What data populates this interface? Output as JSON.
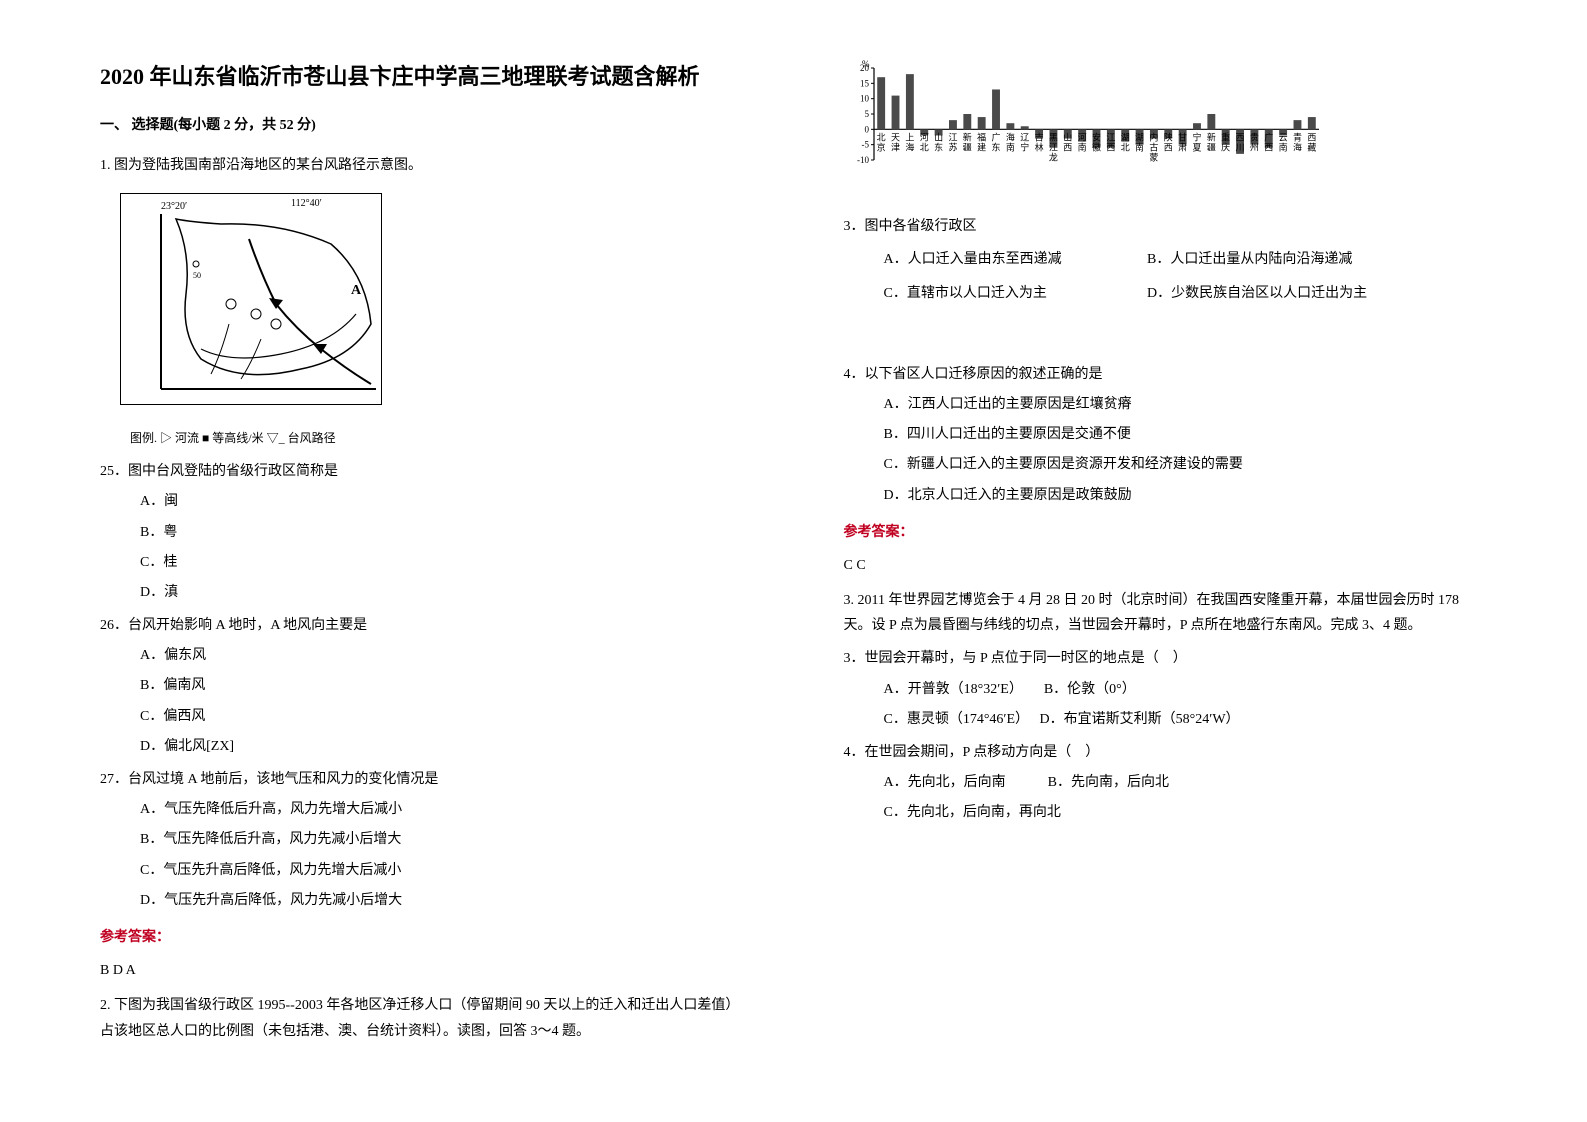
{
  "title": "2020 年山东省临沂市苍山县卞庄中学高三地理联考试题含解析",
  "section1": "一、 选择题(每小题 2 分，共 52 分)",
  "q1": {
    "stem": "1. 图为登陆我国南部沿海地区的某台风路径示意图。",
    "fig_lat": "23°20′",
    "fig_lon": "112°40′",
    "fig_label_a": "A",
    "caption": "图例. ▷ 河流 ■ 等高线/米 ▽_ 台风路径",
    "sub25": "25．图中台风登陆的省级行政区简称是",
    "sub25A": "A．闽",
    "sub25B": "B．粤",
    "sub25C": "C．桂",
    "sub25D": "D．滇",
    "sub26": "26．台风开始影响 A 地时，A 地风向主要是",
    "sub26A": "A．偏东风",
    "sub26B": "B．偏南风",
    "sub26C": "C．偏西风",
    "sub26D": "D．偏北风[ZX]",
    "sub27": "27．台风过境 A 地前后，该地气压和风力的变化情况是",
    "sub27A": "A．气压先降低后升高，风力先增大后减小",
    "sub27B": "B．气压先降低后升高，风力先减小后增大",
    "sub27C": "C．气压先升高后降低，风力先增大后减小",
    "sub27D": "D．气压先升高后降低，风力先减小后增大",
    "ref": "参考答案：",
    "ans": "B  D  A"
  },
  "q2": {
    "stem": "2. 下图为我国省级行政区 1995--2003 年各地区净迁移人口（停留期间 90 天以上的迁入和迁出人口差值）占该地区总人口的比例图（未包括港、澳、台统计资料）。读图，回答 3～4 题。"
  },
  "chart": {
    "ylabel": "%",
    "ymax": 20,
    "ymin": -10,
    "ytick_step": 5,
    "ytick_labels": [
      "-10",
      "-5",
      "0",
      "5",
      "10",
      "15",
      "20"
    ],
    "x_top": [
      "北",
      "天",
      "上",
      "河",
      "山",
      "江",
      "新",
      "福",
      "广",
      "海",
      "辽",
      "吉",
      "黑",
      "山",
      "河",
      "安",
      "江",
      "湖",
      "湖",
      "内",
      "陕",
      "甘",
      "宁",
      "新",
      "重",
      "西",
      "贵",
      "广",
      "云",
      "青",
      "西"
    ],
    "x_bot": [
      "京",
      "津",
      "海",
      "北",
      "东",
      "苏",
      "疆",
      "建",
      "东",
      "南",
      "宁",
      "林",
      "龙",
      "西",
      "南",
      "徽",
      "西",
      "北",
      "南",
      "蒙",
      "西",
      "肃",
      "夏",
      "疆",
      "庆",
      "川",
      "州",
      "西",
      "南",
      "海",
      "藏"
    ],
    "x_mid": [
      "",
      "",
      "",
      "",
      "",
      "",
      "",
      "",
      "",
      "",
      "",
      "",
      "江",
      "",
      "",
      "",
      "",
      "",
      "",
      "古",
      "",
      "",
      "",
      "",
      "",
      "",
      "",
      "",
      "",
      "",
      ""
    ],
    "values": [
      17,
      11,
      18,
      -2,
      -2,
      3,
      5,
      4,
      13,
      2,
      1,
      -3,
      -6,
      -3,
      -4,
      -6,
      -6,
      -4,
      -5,
      -3,
      -3,
      -5,
      2,
      5,
      -5,
      -8,
      -5,
      -6,
      -2,
      3,
      4
    ],
    "bar_color": "#4a4a4a",
    "bg": "#ffffff",
    "axis_color": "#000000",
    "font_size": 9
  },
  "q3": {
    "stem": "3．图中各省级行政区",
    "A": "A．人口迁入量由东至西递减",
    "B": "B．人口迁出量从内陆向沿海递减",
    "C": "C．直辖市以人口迁入为主",
    "D": "D．少数民族自治区以人口迁出为主"
  },
  "q4": {
    "stem": "4．以下省区人口迁移原因的叙述正确的是",
    "A": "A．江西人口迁出的主要原因是红壤贫瘠",
    "B": "B．四川人口迁出的主要原因是交通不便",
    "C": "C．新疆人口迁入的主要原因是资源开发和经济建设的需要",
    "D": "D．北京人口迁入的主要原因是政策鼓励",
    "ref": "参考答案：",
    "ans": "C  C"
  },
  "q5": {
    "stem": "3. 2011 年世界园艺博览会于 4 月 28 日 20 时（北京时间）在我国西安隆重开幕，本届世园会历时 178 天。设 P 点为晨昏圈与纬线的切点，当世园会开幕时，P 点所在地盛行东南风。完成 3、4 题。",
    "sub3": "3．世园会开幕时，与 P 点位于同一时区的地点是（　）",
    "sub3A": "A．开普敦（18°32′E）　　B．伦敦（0°）",
    "sub3C": "C．惠灵顿（174°46′E）　 D．布宜诺斯艾利斯（58°24′W）",
    "sub4": "4．在世园会期间，P 点移动方向是（　）",
    "sub4A": "A．先向北，后向南　　　B．先向南，后向北",
    "sub4C": "C．先向北，后向南，再向北"
  }
}
